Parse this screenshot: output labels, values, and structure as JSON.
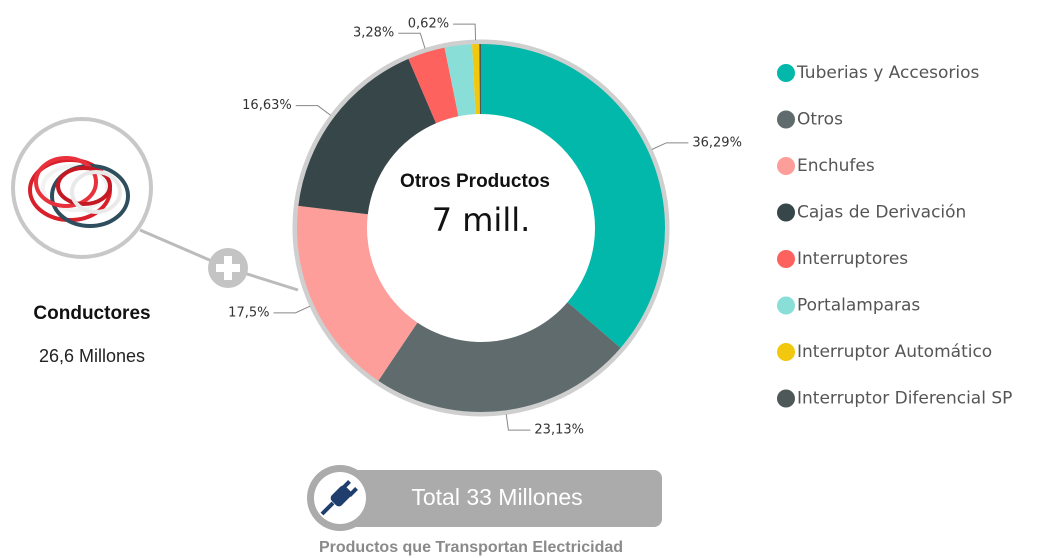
{
  "chart_data": {
    "type": "donut",
    "categories": [
      "Tuberias y Accesorios",
      "Otros",
      "Enchufes",
      "Cajas de Derivación",
      "Interruptores",
      "Portalamparas",
      "Interruptor Automático",
      "Interruptor Diferencial SP"
    ],
    "values": [
      36.29,
      23.13,
      17.5,
      16.63,
      3.28,
      2.4,
      0.62,
      0.15
    ],
    "value_labels": [
      "36,29%",
      "23,13%",
      "17,5%",
      "16,63%",
      "3,28%",
      null,
      "0,62%",
      null
    ],
    "colors": [
      "#01B8AA",
      "#5F6B6D",
      "#FD9E9A",
      "#374649",
      "#FD625E",
      "#8ADED8",
      "#F2C80F",
      "#4E5859"
    ],
    "center_title": "Otros Productos",
    "center_value": "7 mill.",
    "legend": "right"
  },
  "side_panel": {
    "title": "Conductores",
    "value": "26,6 Millones"
  },
  "footer": {
    "total": "Total 33 Millones",
    "caption": "Productos que Transportan Electricidad"
  }
}
